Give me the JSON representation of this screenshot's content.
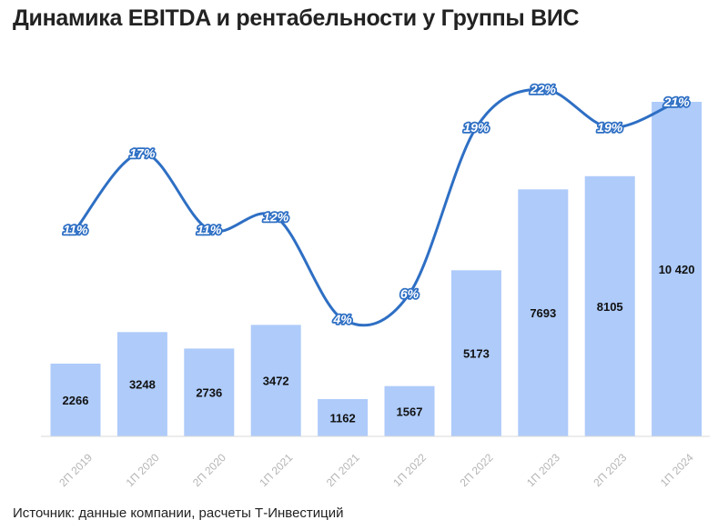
{
  "title": "Динамика EBITDA и рентабельности у Группы ВИС",
  "source": "Источник: данные компании, расчеты Т-Инвестиций",
  "colors": {
    "bar": "#aecbfa",
    "line": "#2e6fc4",
    "axis": "#d9d9d9",
    "tick_text": "#b5b5b5"
  },
  "chart_data": {
    "type": "bar",
    "categories": [
      "2П 2019",
      "1П 2020",
      "2П 2020",
      "1П 2021",
      "2П 2021",
      "1П 2022",
      "2П 2022",
      "1П 2023",
      "2П 2023",
      "1П 2024"
    ],
    "series": [
      {
        "type": "bar",
        "values": [
          2266,
          3248,
          2736,
          3472,
          1162,
          1567,
          5173,
          7693,
          8105,
          10420
        ],
        "labels": [
          "2266",
          "3248",
          "2736",
          "3472",
          "1162",
          "1567",
          "5173",
          "7693",
          "8105",
          "10 420"
        ]
      },
      {
        "type": "line",
        "values": [
          11,
          17,
          11,
          12,
          4,
          6,
          19,
          22,
          19,
          21
        ],
        "labels": [
          "11%",
          "17%",
          "11%",
          "12%",
          "4%",
          "6%",
          "19%",
          "22%",
          "19%",
          "21%"
        ]
      }
    ],
    "grid": false,
    "legend": "none"
  }
}
